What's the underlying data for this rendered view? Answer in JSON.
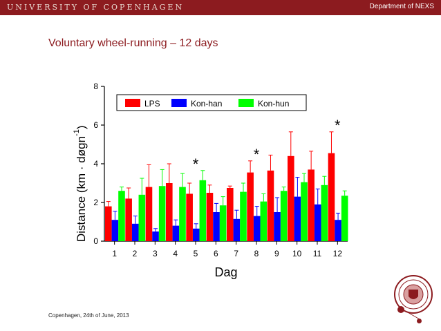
{
  "header": {
    "university": "UNIVERSITY OF COPENHAGEN",
    "department": "Department of NEXS"
  },
  "slide": {
    "title": "Voluntary wheel-running – 12 days"
  },
  "footer": {
    "text": "Copenhagen, 24th of June, 2013"
  },
  "colors": {
    "brand": "#8c1b1f",
    "lps": "#ff0000",
    "kon_han": "#0000ff",
    "kon_hun": "#00ff00"
  },
  "chart_data": {
    "type": "bar",
    "xlabel": "Dag",
    "ylabel": "Distance (km · døgn⁻¹)",
    "ylabel_main": "Distance (km · døgn",
    "ylabel_sup": "-1",
    "ylabel_close": ")",
    "ylim": [
      0,
      8
    ],
    "yticks": [
      0,
      2,
      4,
      6,
      8
    ],
    "categories": [
      "1",
      "2",
      "3",
      "4",
      "5",
      "6",
      "7",
      "8",
      "9",
      "10",
      "11",
      "12"
    ],
    "legend_position": "top",
    "series": [
      {
        "name": "LPS",
        "color": "#ff0000",
        "values": [
          1.8,
          2.2,
          2.8,
          3.0,
          2.45,
          2.5,
          2.75,
          3.55,
          3.65,
          4.4,
          3.7,
          4.55
        ],
        "errors": [
          0.25,
          0.55,
          1.15,
          1.0,
          0.55,
          0.4,
          0.1,
          0.6,
          0.8,
          1.25,
          0.95,
          1.1
        ]
      },
      {
        "name": "Kon-han",
        "color": "#0000ff",
        "values": [
          1.1,
          0.9,
          0.5,
          0.8,
          0.65,
          1.5,
          1.15,
          1.3,
          1.5,
          2.3,
          1.9,
          1.1
        ],
        "errors": [
          0.45,
          0.4,
          0.15,
          0.3,
          0.25,
          0.45,
          0.45,
          0.5,
          0.75,
          1.0,
          0.8,
          0.35
        ]
      },
      {
        "name": "Kon-hun",
        "color": "#00ff00",
        "values": [
          2.6,
          2.4,
          2.85,
          2.8,
          3.15,
          1.85,
          2.55,
          2.05,
          2.6,
          3.05,
          2.9,
          2.35
        ],
        "errors": [
          0.2,
          0.85,
          0.85,
          0.7,
          0.5,
          0.45,
          0.45,
          0.4,
          0.2,
          0.45,
          0.45,
          0.25
        ]
      }
    ],
    "annotations": [
      {
        "category": "5",
        "text": "*"
      },
      {
        "category": "8",
        "text": "*"
      },
      {
        "category": "12",
        "text": "*"
      }
    ]
  }
}
